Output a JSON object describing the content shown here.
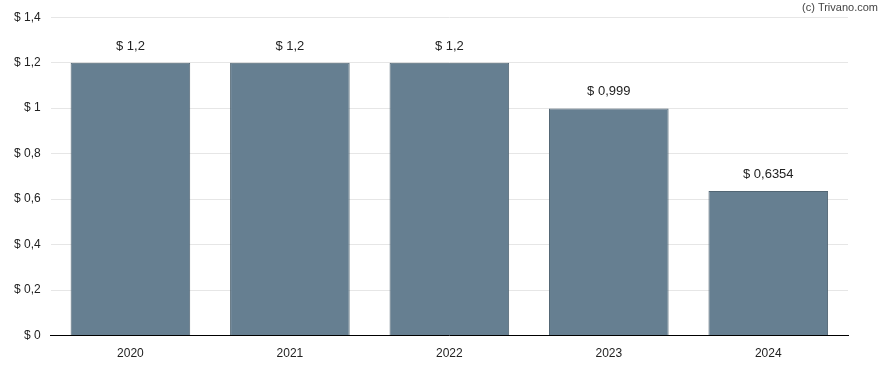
{
  "chart_data": {
    "type": "bar",
    "categories": [
      "2020",
      "2021",
      "2022",
      "2023",
      "2024"
    ],
    "values": [
      1.2,
      1.2,
      1.2,
      0.999,
      0.6354
    ],
    "value_labels": [
      "$ 1,2",
      "$ 1,2",
      "$ 1,2",
      "$ 0,999",
      "$ 0,6354"
    ],
    "data_labels": true,
    "color": "#667f91",
    "ylim": [
      0,
      1.4
    ],
    "yticks": [
      {
        "value": 0,
        "label": "$ 0"
      },
      {
        "value": 0.2,
        "label": "$ 0,2"
      },
      {
        "value": 0.4,
        "label": "$ 0,4"
      },
      {
        "value": 0.6,
        "label": "$ 0,6"
      },
      {
        "value": 0.8,
        "label": "$ 0,8"
      },
      {
        "value": 1,
        "label": "$ 1"
      },
      {
        "value": 1.2,
        "label": "$ 1,2"
      },
      {
        "value": 1.4,
        "label": "$ 1,4"
      }
    ],
    "grid": true,
    "annotations": [
      "(c) Trivano.com"
    ]
  }
}
